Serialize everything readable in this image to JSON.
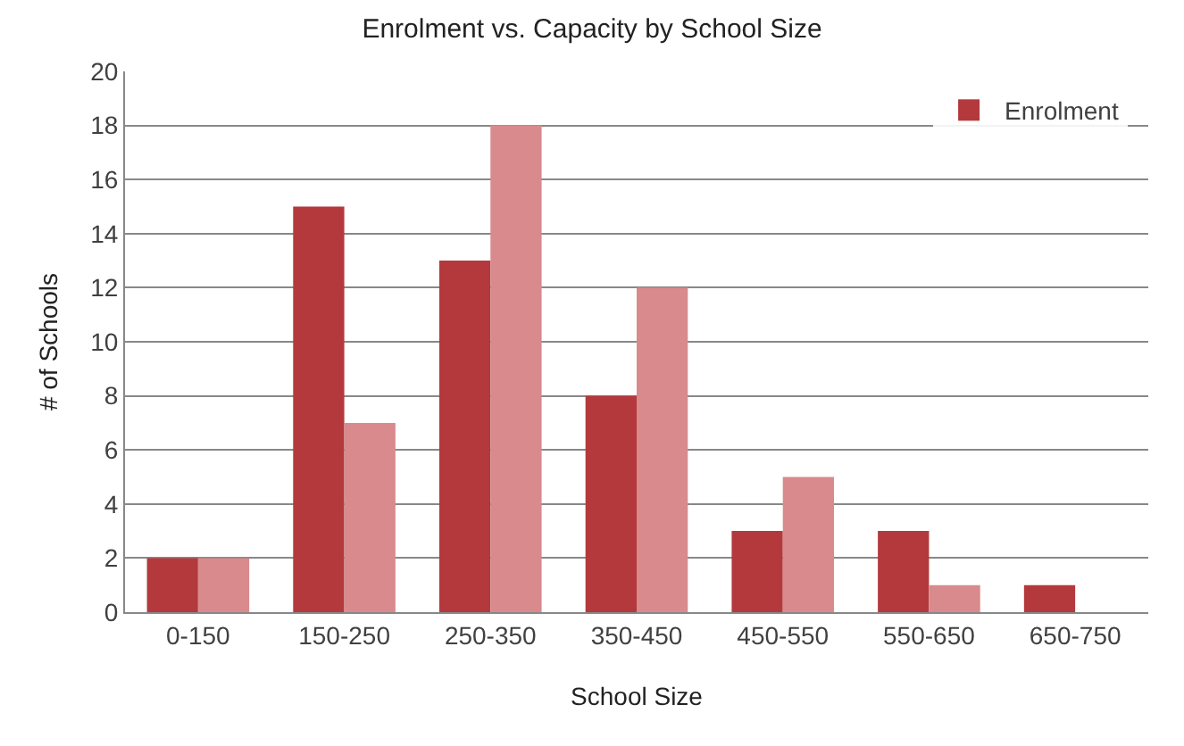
{
  "chart_data": {
    "type": "bar",
    "title": "Enrolment vs. Capacity by School Size",
    "xlabel": "School Size",
    "ylabel": "# of Schools",
    "categories": [
      "0-150",
      "150-250",
      "250-350",
      "350-450",
      "450-550",
      "550-650",
      "650-750"
    ],
    "series": [
      {
        "name": "Enrolment",
        "color": "#b3393d",
        "values": [
          2,
          15,
          13,
          8,
          3,
          3,
          1
        ]
      },
      {
        "color": "#d98a8c",
        "values": [
          2,
          7,
          18,
          12,
          5,
          1,
          0
        ]
      }
    ],
    "ylim": [
      0,
      20
    ],
    "yticks": [
      0,
      2,
      4,
      6,
      8,
      10,
      12,
      14,
      16,
      18,
      20
    ],
    "grid": "y",
    "legend": "top right"
  }
}
